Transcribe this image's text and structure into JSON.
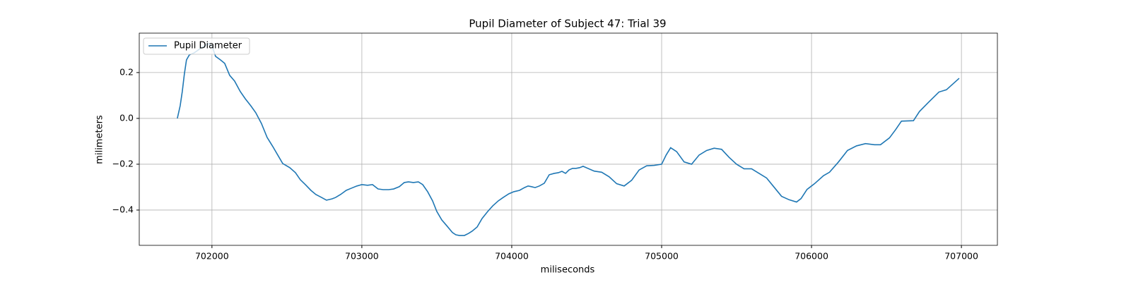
{
  "chart_data": {
    "type": "line",
    "title": "Pupil Diameter of Subject 47: Trial 39",
    "xlabel": "miliseconds",
    "ylabel": "milimeters",
    "xlim": [
      701515,
      707240
    ],
    "ylim": [
      -0.554,
      0.372
    ],
    "xticks": [
      702000,
      703000,
      704000,
      705000,
      706000,
      707000
    ],
    "yticks": [
      {
        "value": -0.4,
        "label": "−0.4"
      },
      {
        "value": -0.2,
        "label": "−0.2"
      },
      {
        "value": 0,
        "label": "0.0"
      },
      0.2
    ],
    "grid": true,
    "legend": "upper left",
    "x": [
      701769,
      701788,
      701802,
      701816,
      701830,
      701849,
      701882,
      701929,
      701976,
      702000,
      702024,
      702057,
      702085,
      702118,
      702151,
      702189,
      702222,
      702259,
      702292,
      702330,
      702368,
      702406,
      702439,
      702472,
      702519,
      702557,
      702590,
      702623,
      702660,
      702693,
      702731,
      702764,
      702783,
      702802,
      702825,
      702858,
      702896,
      702929,
      702967,
      703000,
      703038,
      703071,
      703108,
      703142,
      703179,
      703212,
      703250,
      703283,
      703311,
      703344,
      703377,
      703406,
      703439,
      703472,
      703500,
      703533,
      703566,
      703604,
      703627,
      703651,
      703684,
      703712,
      703736,
      703769,
      703802,
      703840,
      703873,
      703910,
      703943,
      703981,
      704014,
      704052,
      704085,
      704109,
      704132,
      704156,
      704184,
      704217,
      704250,
      704283,
      704311,
      704335,
      704359,
      704382,
      704406,
      704429,
      704453,
      704476,
      704550,
      704600,
      704650,
      704700,
      704750,
      704800,
      704850,
      704900,
      704950,
      705000,
      705030,
      705060,
      705100,
      705150,
      705200,
      705250,
      705300,
      705350,
      705400,
      705450,
      705500,
      705550,
      705600,
      705650,
      705700,
      705750,
      705800,
      705850,
      705900,
      705930,
      705970,
      706020,
      706080,
      706120,
      706180,
      706240,
      706300,
      706360,
      706420,
      706460,
      706520,
      706560,
      706600,
      706680,
      706720,
      706780,
      706850,
      706900,
      706985
    ],
    "series": [
      {
        "name": "Pupil Diameter",
        "color": "#1f77b4",
        "values": [
          0,
          0.055,
          0.117,
          0.194,
          0.255,
          0.277,
          0.286,
          0.308,
          0.326,
          0.317,
          0.271,
          0.255,
          0.24,
          0.188,
          0.163,
          0.117,
          0.086,
          0.055,
          0.025,
          -0.022,
          -0.083,
          -0.123,
          -0.16,
          -0.197,
          -0.215,
          -0.237,
          -0.268,
          -0.289,
          -0.314,
          -0.332,
          -0.345,
          -0.357,
          -0.354,
          -0.351,
          -0.345,
          -0.332,
          -0.314,
          -0.305,
          -0.295,
          -0.289,
          -0.292,
          -0.289,
          -0.308,
          -0.311,
          -0.311,
          -0.308,
          -0.298,
          -0.28,
          -0.277,
          -0.28,
          -0.277,
          -0.289,
          -0.32,
          -0.36,
          -0.406,
          -0.443,
          -0.468,
          -0.498,
          -0.508,
          -0.511,
          -0.511,
          -0.502,
          -0.492,
          -0.474,
          -0.437,
          -0.406,
          -0.382,
          -0.36,
          -0.345,
          -0.329,
          -0.32,
          -0.314,
          -0.302,
          -0.295,
          -0.298,
          -0.302,
          -0.295,
          -0.283,
          -0.246,
          -0.24,
          -0.237,
          -0.231,
          -0.24,
          -0.225,
          -0.218,
          -0.218,
          -0.215,
          -0.209,
          -0.23,
          -0.235,
          -0.255,
          -0.285,
          -0.295,
          -0.27,
          -0.225,
          -0.207,
          -0.205,
          -0.2,
          -0.16,
          -0.128,
          -0.145,
          -0.19,
          -0.2,
          -0.16,
          -0.14,
          -0.13,
          -0.135,
          -0.17,
          -0.2,
          -0.22,
          -0.22,
          -0.24,
          -0.26,
          -0.3,
          -0.34,
          -0.355,
          -0.365,
          -0.35,
          -0.31,
          -0.285,
          -0.25,
          -0.235,
          -0.19,
          -0.14,
          -0.12,
          -0.11,
          -0.115,
          -0.115,
          -0.085,
          -0.05,
          -0.012,
          -0.01,
          0.03,
          0.07,
          0.115,
          0.125,
          0.175
        ]
      }
    ]
  }
}
